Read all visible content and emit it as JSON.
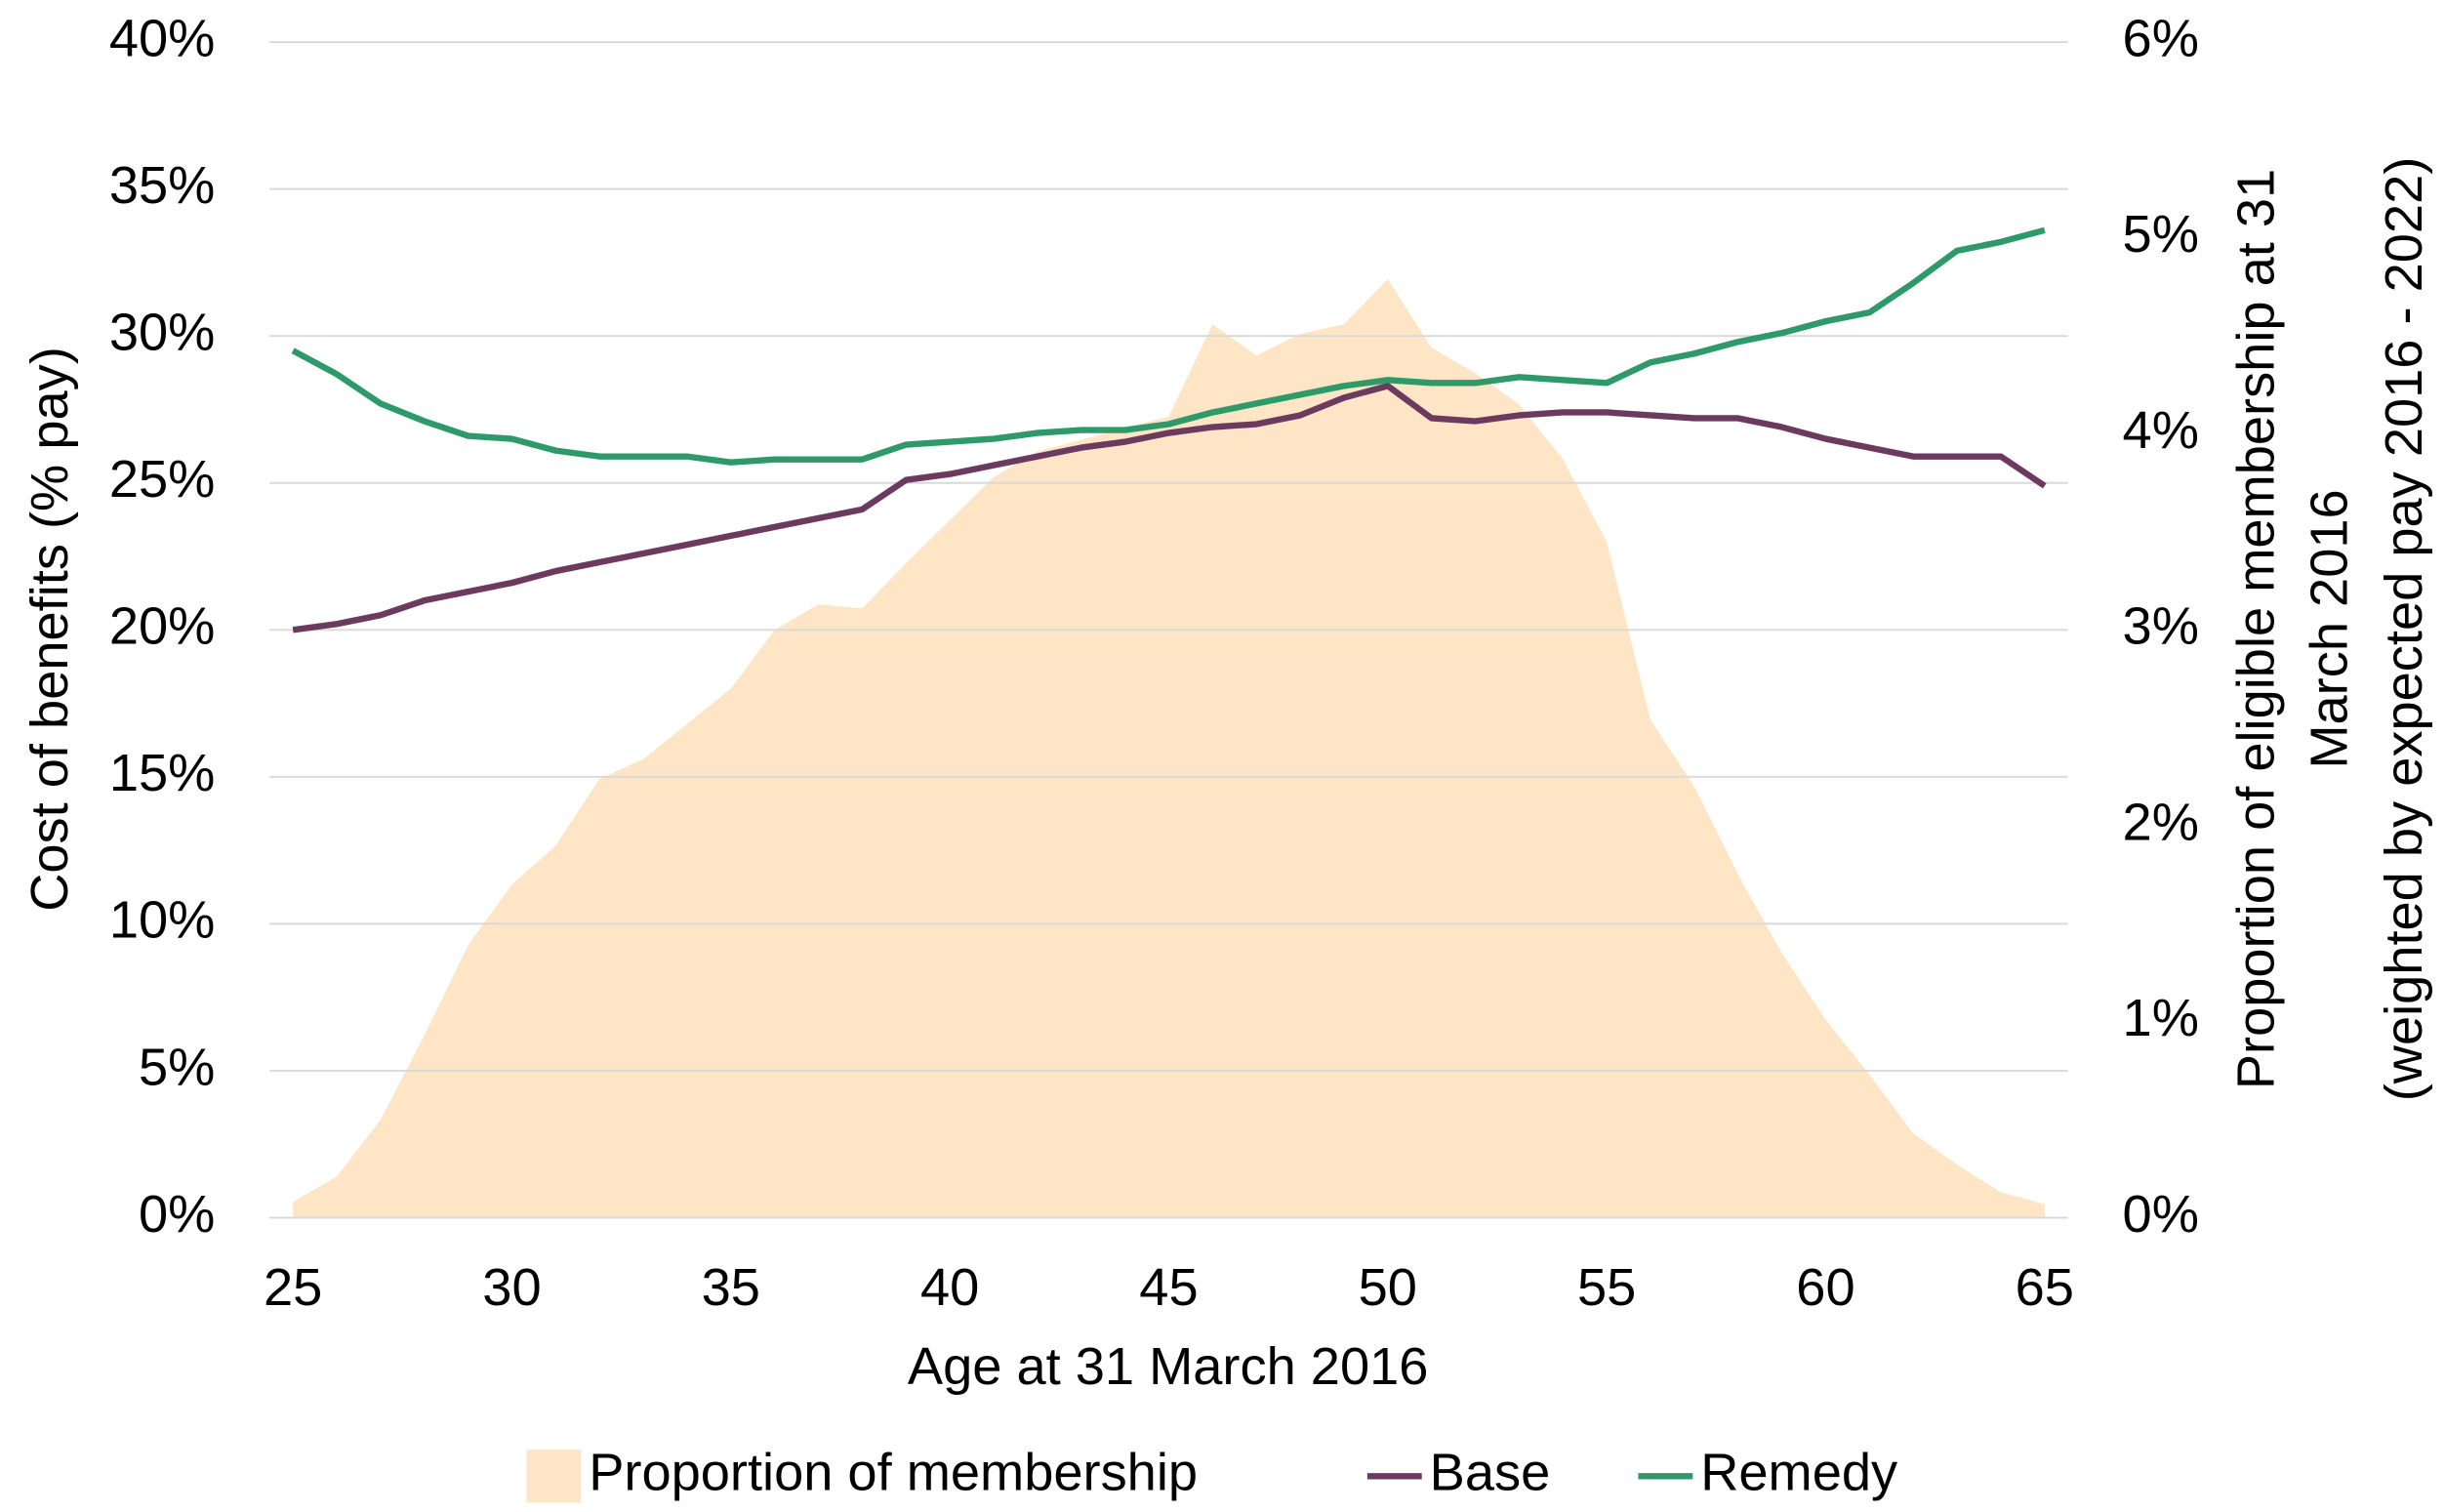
{
  "chart_data": {
    "type": "line",
    "xlabel": "Age at 31 March 2016",
    "ylabel": "Cost of benefits (% pay)",
    "y2label": [
      "Proportion of eligible membership at 31",
      "March 2016",
      "(weighted by expected pay 2016 - 2022)"
    ],
    "x": [
      25,
      26,
      27,
      28,
      29,
      30,
      31,
      32,
      33,
      34,
      35,
      36,
      37,
      38,
      39,
      40,
      41,
      42,
      43,
      44,
      45,
      46,
      47,
      48,
      49,
      50,
      51,
      52,
      53,
      54,
      55,
      56,
      57,
      58,
      59,
      60,
      61,
      62,
      63,
      64,
      65
    ],
    "xlim": [
      25,
      65
    ],
    "xticks": [
      25,
      30,
      35,
      40,
      45,
      50,
      55,
      60,
      65
    ],
    "ylim": [
      0,
      40
    ],
    "yticks": [
      {
        "value": 0,
        "label": "0%"
      },
      {
        "value": 5,
        "label": "5%"
      },
      {
        "value": 10,
        "label": "10%"
      },
      {
        "value": 15,
        "label": "15%"
      },
      {
        "value": 20,
        "label": "20%"
      },
      {
        "value": 25,
        "label": "25%"
      },
      {
        "value": 30,
        "label": "30%"
      },
      {
        "value": 35,
        "label": "35%"
      },
      {
        "value": 40,
        "label": "40%"
      }
    ],
    "y2lim": [
      0,
      6
    ],
    "y2ticks": [
      {
        "value": 0,
        "label": "0%"
      },
      {
        "value": 1,
        "label": "1%"
      },
      {
        "value": 2,
        "label": "2%"
      },
      {
        "value": 3,
        "label": "3%"
      },
      {
        "value": 4,
        "label": "4%"
      },
      {
        "value": 5,
        "label": "5%"
      },
      {
        "value": 6,
        "label": "6%"
      }
    ],
    "grid": true,
    "legend": "bottom",
    "series": [
      {
        "name": "Proportion of membership",
        "kind": "area",
        "axis": "y2",
        "color": "#fde5c6",
        "values": [
          0.08,
          0.21,
          0.5,
          0.93,
          1.39,
          1.7,
          1.9,
          2.24,
          2.34,
          2.52,
          2.7,
          3.0,
          3.13,
          3.11,
          3.34,
          3.56,
          3.78,
          3.91,
          3.97,
          4.03,
          4.09,
          4.56,
          4.4,
          4.51,
          4.56,
          4.79,
          4.44,
          4.31,
          4.15,
          3.87,
          3.45,
          2.54,
          2.2,
          1.75,
          1.35,
          1.01,
          0.73,
          0.43,
          0.27,
          0.13,
          0.07
        ]
      },
      {
        "name": "Base",
        "kind": "line",
        "color": "#6b3a5e",
        "values": [
          20.0,
          20.2,
          20.5,
          21.0,
          21.3,
          21.6,
          22.0,
          22.3,
          22.6,
          22.9,
          23.2,
          23.5,
          23.8,
          24.1,
          25.1,
          25.3,
          25.6,
          25.9,
          26.2,
          26.4,
          26.7,
          26.9,
          27.0,
          27.3,
          27.9,
          28.3,
          27.2,
          27.1,
          27.3,
          27.4,
          27.4,
          27.3,
          27.2,
          27.2,
          26.9,
          26.5,
          26.2,
          25.9,
          25.9,
          25.9,
          24.9
        ]
      },
      {
        "name": "Remedy",
        "kind": "line",
        "color": "#2e9a6a",
        "values": [
          29.5,
          28.7,
          27.7,
          27.1,
          26.6,
          26.5,
          26.1,
          25.9,
          25.9,
          25.9,
          25.7,
          25.8,
          25.8,
          25.8,
          26.3,
          26.4,
          26.5,
          26.7,
          26.8,
          26.8,
          27.0,
          27.4,
          27.7,
          28.0,
          28.3,
          28.5,
          28.4,
          28.4,
          28.6,
          28.5,
          28.4,
          29.1,
          29.4,
          29.8,
          30.1,
          30.5,
          30.8,
          31.8,
          32.9,
          33.2,
          33.6
        ]
      }
    ]
  }
}
